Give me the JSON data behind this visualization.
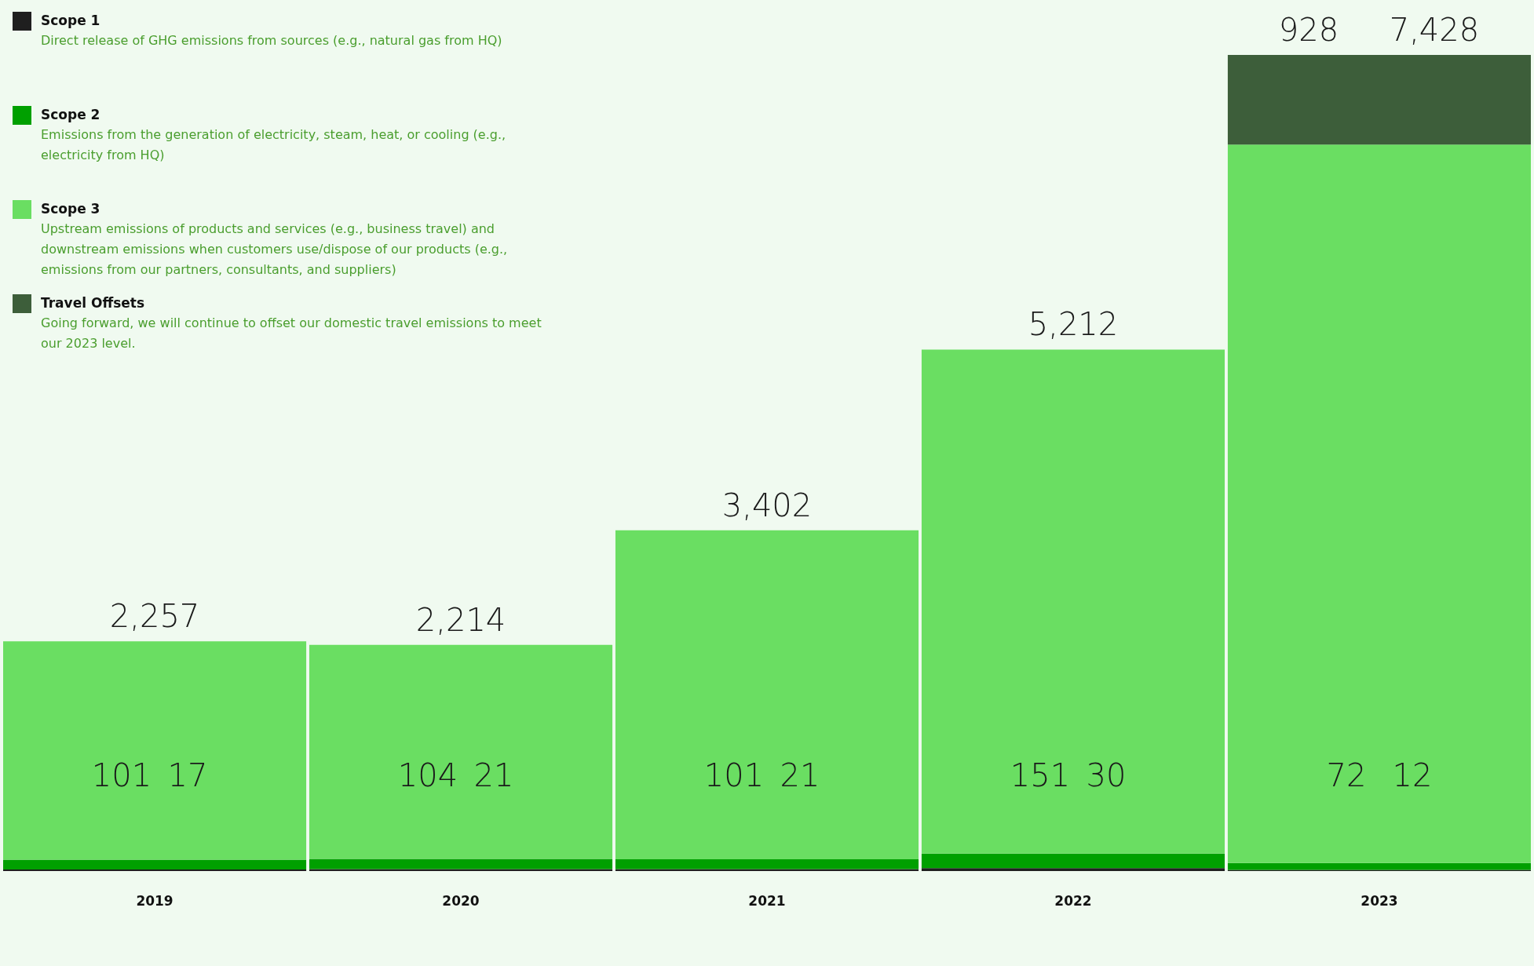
{
  "chart_data": {
    "type": "bar",
    "stacked": true,
    "categories": [
      "2019",
      "2020",
      "2021",
      "2022",
      "2023"
    ],
    "series": [
      {
        "name": "Scope 1",
        "color": "#1f1f1f",
        "values": [
          17,
          21,
          21,
          30,
          12
        ],
        "value_labels": [
          "17",
          "21",
          "21",
          "30",
          "12"
        ]
      },
      {
        "name": "Scope 2",
        "color": "#00a000",
        "values": [
          101,
          104,
          101,
          151,
          72
        ],
        "value_labels": [
          "101",
          "104",
          "101",
          "151",
          "72"
        ]
      },
      {
        "name": "Scope 3",
        "color": "#6ade62",
        "values": [
          2257,
          2214,
          3402,
          5212,
          7428
        ],
        "value_labels": [
          "2,257",
          "2,214",
          "3,402",
          "5,212",
          "7,428"
        ]
      },
      {
        "name": "Travel Offsets",
        "color": "#3d5e3a",
        "values": [
          null,
          null,
          null,
          null,
          928
        ],
        "value_labels": [
          null,
          null,
          null,
          null,
          "928"
        ]
      }
    ],
    "annotations": [
      "Direct release of GHG emissions from sources (e.g., natural gas from HQ)",
      "Emissions from the generation of electricity, steam, heat, or cooling (e.g., electricity from HQ)",
      "Upstream emissions of products and services (e.g., business travel) and downstream emissions when customers use/dispose of our products (e.g., emissions from our partners, consultants, and suppliers)",
      "Going forward, we will continue to offset our domestic travel emissions to meet our 2023 level."
    ],
    "legend": "top left"
  }
}
